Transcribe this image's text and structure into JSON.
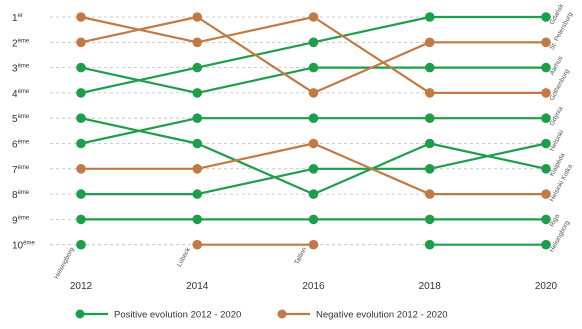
{
  "colors": {
    "positive": "#1e9e4a",
    "negative": "#c27a44",
    "grid": "#bdbdbd"
  },
  "chart_data": {
    "type": "line",
    "xlabel": "",
    "ylabel": "",
    "x": [
      2012,
      2014,
      2016,
      2018,
      2020
    ],
    "x_tick_labels": [
      "2012",
      "2014",
      "2016",
      "2018",
      "2020"
    ],
    "y_tick_labels": [
      {
        "base": "1",
        "sup": "er"
      },
      {
        "base": "2",
        "sup": "ème"
      },
      {
        "base": "3",
        "sup": "ème"
      },
      {
        "base": "4",
        "sup": "ème"
      },
      {
        "base": "5",
        "sup": "ème"
      },
      {
        "base": "6",
        "sup": "ème"
      },
      {
        "base": "7",
        "sup": "ème"
      },
      {
        "base": "8",
        "sup": "ème"
      },
      {
        "base": "9",
        "sup": "ème"
      },
      {
        "base": "10",
        "sup": "ème"
      }
    ],
    "ylim": [
      1,
      10
    ],
    "y_inverted": true,
    "grid": "horizontal dashed",
    "legend_position": "bottom",
    "legend": [
      {
        "group": "positive",
        "label": "Positive evolution 2012 - 2020"
      },
      {
        "group": "negative",
        "label": "Negative evolution 2012 - 2020"
      }
    ],
    "series": [
      {
        "group": "positive",
        "ranks": [
          4,
          3,
          2,
          1,
          1
        ]
      },
      {
        "group": "positive",
        "ranks": [
          3,
          4,
          3,
          3,
          3
        ]
      },
      {
        "group": "positive",
        "ranks": [
          6,
          5,
          5,
          5,
          5
        ]
      },
      {
        "group": "positive",
        "ranks": [
          5,
          6,
          8,
          6,
          7
        ]
      },
      {
        "group": "positive",
        "ranks": [
          8,
          8,
          7,
          7,
          6
        ]
      },
      {
        "group": "positive",
        "ranks": [
          9,
          9,
          9,
          9,
          9
        ]
      },
      {
        "group": "positive",
        "ranks": [
          10,
          null,
          null,
          10,
          10
        ]
      },
      {
        "group": "negative",
        "ranks": [
          1,
          2,
          1,
          4,
          4
        ]
      },
      {
        "group": "negative",
        "ranks": [
          2,
          1,
          4,
          2,
          2
        ]
      },
      {
        "group": "negative",
        "ranks": [
          7,
          7,
          6,
          8,
          8
        ]
      },
      {
        "group": "negative",
        "ranks": [
          null,
          10,
          10,
          null,
          null
        ]
      }
    ],
    "right_labels": [
      {
        "rank": 1,
        "text": "Gdańsk"
      },
      {
        "rank": 2,
        "text": "St. Petersburg"
      },
      {
        "rank": 3,
        "text": "Aarhus"
      },
      {
        "rank": 4,
        "text": "Gothenburg"
      },
      {
        "rank": 5,
        "text": "Gdynia"
      },
      {
        "rank": 6,
        "text": "Helsinki"
      },
      {
        "rank": 7,
        "text": "Klaipėda"
      },
      {
        "rank": 8,
        "text": "Helsinki Kotka"
      },
      {
        "rank": 9,
        "text": "Riga"
      },
      {
        "rank": 10,
        "text": "Helsingborg"
      }
    ],
    "point_labels": [
      {
        "x": 2012,
        "rank": 10,
        "text": "Helsingborg"
      },
      {
        "x": 2014,
        "rank": 10,
        "text": "Lübeck"
      },
      {
        "x": 2016,
        "rank": 10,
        "text": "Tallinn"
      }
    ]
  }
}
